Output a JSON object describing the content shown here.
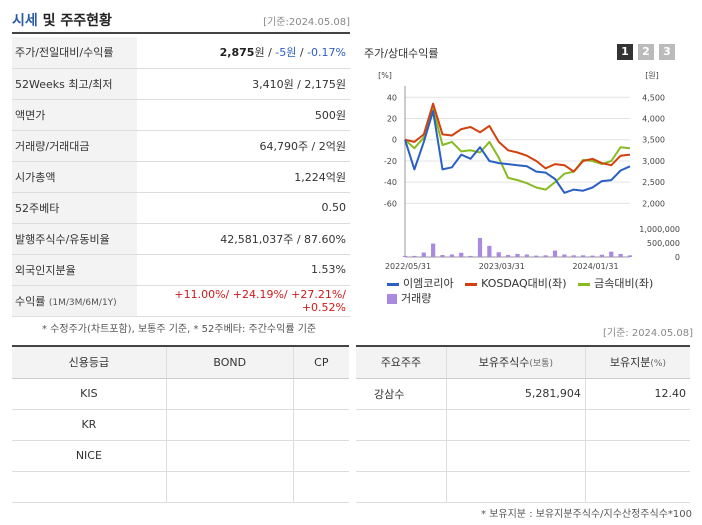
{
  "header": {
    "title_main": "시세",
    "title_rest": " 및 주주현황",
    "date": "[기준:2024.05.08]"
  },
  "price_rows": [
    {
      "key": "주가/전일대비/수익률"
    },
    {
      "key": "52Weeks 최고/최저",
      "value": "3,410원 / 2,175원"
    },
    {
      "key": "액면가",
      "value": "500원"
    },
    {
      "key": "거래량/거래대금",
      "value": "64,790주 / 2억원"
    },
    {
      "key": "시가총액",
      "value": "1,224억원"
    },
    {
      "key": "52주베타",
      "value": "0.50"
    },
    {
      "key": "발행주식수/유동비율",
      "value": "42,581,037주 / 87.60%"
    },
    {
      "key": "외국인지분율",
      "value": "1.53%"
    },
    {
      "key": "수익률",
      "key_sub": "(1M/3M/6M/1Y)"
    }
  ],
  "price": {
    "value": "2,875",
    "unit": "원",
    "sep1": " / ",
    "change": "-5원",
    "sep2": " / ",
    "rate": "-0.17%"
  },
  "returns": {
    "r1m": "+11.00%",
    "r3m": "+24.19%",
    "r6m": "+27.21%",
    "r1y": "+0.52%",
    "sep": "/ "
  },
  "notes": {
    "left": "* 수정주가(차트포함), 보통주 기준, * 52주베타: 주간수익률 기준",
    "right_date": "[기준: 2024.05.08]",
    "bottom": "* 보유지분 : 보유지분주식수/지수산정주식수*100"
  },
  "chart_panel": {
    "title": "주가/상대수익률",
    "tabs": [
      "1",
      "2",
      "3"
    ]
  },
  "chart_data": {
    "type": "line",
    "x": [
      "2022-05",
      "2022-06",
      "2022-07",
      "2022-08",
      "2022-09",
      "2022-10",
      "2022-11",
      "2022-12",
      "2023-01",
      "2023-02",
      "2023-03",
      "2023-04",
      "2023-05",
      "2023-06",
      "2023-07",
      "2023-08",
      "2023-09",
      "2023-10",
      "2023-11",
      "2023-12",
      "2024-01",
      "2024-02",
      "2024-03",
      "2024-04",
      "2024-05"
    ],
    "x_tick_labels": [
      "2022/05/31",
      "2023/03/31",
      "2024/01/31"
    ],
    "left_axis": {
      "label": "[%]",
      "ticks": [
        "40",
        "20",
        "0",
        "-20",
        "-40",
        "-60"
      ],
      "range": [
        -70,
        45
      ]
    },
    "right_axis_price": {
      "label": "[원]",
      "ticks": [
        "4,500",
        "4,000",
        "3,500",
        "3,000",
        "2,500",
        "2,000"
      ],
      "range": [
        2000,
        4500
      ]
    },
    "right_axis_volume": {
      "ticks": [
        "1,000,000",
        "500,000",
        "0"
      ],
      "range": [
        0,
        1000000
      ]
    },
    "series": [
      {
        "name": "이엠코리아",
        "color": "#2a5fc4",
        "values": [
          0,
          -28,
          -2,
          27,
          -28,
          -26,
          -14,
          -18,
          -7,
          -20,
          -22,
          -23,
          -24,
          -25,
          -30,
          -31,
          -37,
          -50,
          -47,
          -48,
          -45,
          -39,
          -38,
          -29,
          -25
        ]
      },
      {
        "name": "KOSDAQ대비(좌)",
        "color": "#d3400e",
        "values": [
          0,
          -2,
          5,
          34,
          5,
          4,
          10,
          12,
          7,
          13,
          -2,
          -10,
          -12,
          -15,
          -20,
          -27,
          -23,
          -24,
          -30,
          -20,
          -18,
          -22,
          -24,
          -15,
          -14
        ]
      },
      {
        "name": "금속대비(좌)",
        "color": "#88bb22",
        "values": [
          0,
          -8,
          2,
          29,
          -5,
          -2,
          -11,
          -10,
          -12,
          -2,
          -17,
          -36,
          -38,
          -41,
          -45,
          -47,
          -40,
          -32,
          -30,
          -19,
          -20,
          -23,
          -20,
          -7,
          -8
        ]
      }
    ],
    "volume": {
      "name": "거래량",
      "color": "#a98ae0",
      "values": [
        40000,
        40000,
        160000,
        480000,
        70000,
        90000,
        150000,
        40000,
        680000,
        400000,
        170000,
        70000,
        110000,
        90000,
        50000,
        60000,
        230000,
        90000,
        60000,
        60000,
        50000,
        80000,
        190000,
        110000,
        60000
      ]
    }
  },
  "credit": {
    "headers": [
      "신용등급",
      "BOND",
      "CP"
    ],
    "rows": [
      [
        "KIS",
        "",
        ""
      ],
      [
        "KR",
        "",
        ""
      ],
      [
        "NICE",
        "",
        ""
      ],
      [
        "",
        "",
        ""
      ]
    ]
  },
  "holders": {
    "headers": [
      "주요주주",
      "보유주식수",
      "보유지분"
    ],
    "header_units": [
      "",
      "(보통)",
      "(%)"
    ],
    "rows": [
      [
        "강삼수",
        "5,281,904",
        "12.40"
      ],
      [
        "",
        "",
        ""
      ],
      [
        "",
        "",
        ""
      ],
      [
        "",
        "",
        ""
      ]
    ]
  }
}
